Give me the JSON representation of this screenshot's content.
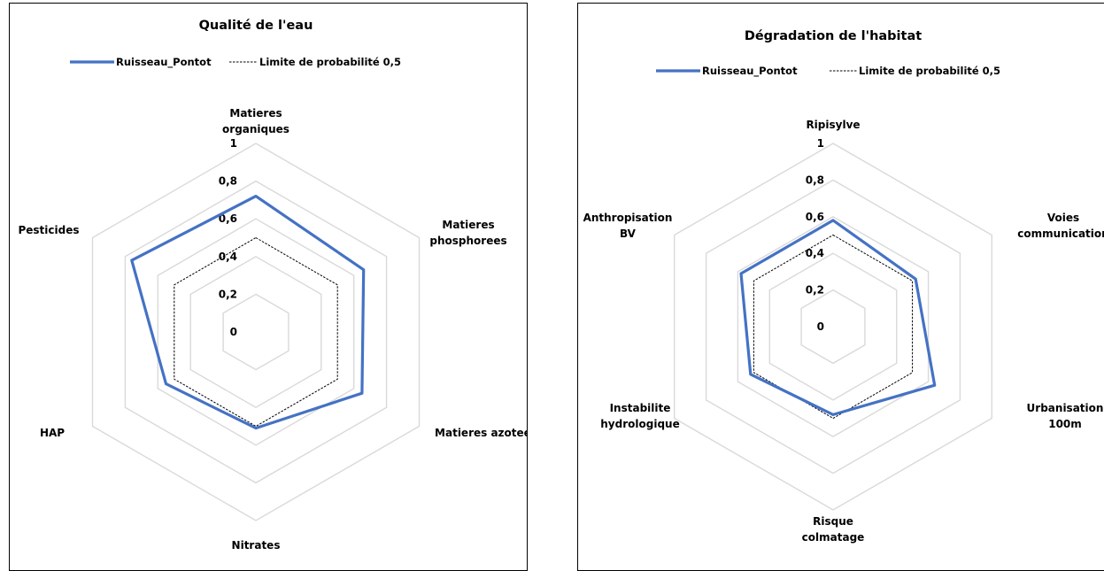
{
  "chart_data": [
    {
      "type": "radar",
      "title": "Qualité de l'eau",
      "categories": [
        "Matieres organiques",
        "Matieres phosphorees",
        "Matieres azotees",
        "Nitrates",
        "HAP",
        "Pesticides"
      ],
      "series": [
        {
          "name": "Ruisseau_Pontot",
          "values": [
            0.72,
            0.66,
            0.65,
            0.51,
            0.55,
            0.76
          ],
          "color": "#4472c4",
          "style": "solid"
        },
        {
          "name": "Limite de probabilité 0,5",
          "values": [
            0.5,
            0.5,
            0.5,
            0.5,
            0.5,
            0.5
          ],
          "color": "#000000",
          "style": "dashed"
        }
      ],
      "rlim": [
        0,
        1
      ],
      "ticks": [
        "0",
        "0,2",
        "0,4",
        "0,6",
        "0,8",
        "1"
      ],
      "grid": true,
      "legend": "top"
    },
    {
      "type": "radar",
      "title": "Dégradation de l'habitat",
      "categories": [
        "Ripisylve",
        "Voies communication",
        "Urbanisation 100m",
        "Risque colmatage",
        "Instabilite hydrologique",
        "Anthropisation BV"
      ],
      "series": [
        {
          "name": "Ruisseau_Pontot",
          "values": [
            0.58,
            0.52,
            0.64,
            0.48,
            0.52,
            0.58
          ],
          "color": "#4472c4",
          "style": "solid"
        },
        {
          "name": "Limite de probabilité 0,5",
          "values": [
            0.5,
            0.5,
            0.5,
            0.5,
            0.5,
            0.5
          ],
          "color": "#000000",
          "style": "dashed"
        }
      ],
      "rlim": [
        0,
        1
      ],
      "ticks": [
        "0",
        "0,2",
        "0,4",
        "0,6",
        "0,8",
        "1"
      ],
      "grid": true,
      "legend": "top"
    }
  ]
}
